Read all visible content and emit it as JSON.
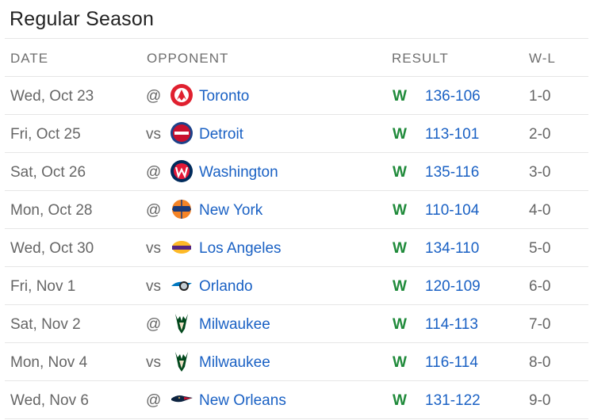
{
  "title": "Regular Season",
  "headers": {
    "date": "DATE",
    "opponent": "OPPONENT",
    "result": "RESULT",
    "wl": "W-L"
  },
  "colors": {
    "win": "#1f8a3a",
    "link": "#1a61c4"
  },
  "games": [
    {
      "date": "Wed, Oct 23",
      "ha": "@",
      "logo": "raptors-logo-icon",
      "team": "Toronto",
      "outcome": "W",
      "score": "136-106",
      "record": "1-0"
    },
    {
      "date": "Fri, Oct 25",
      "ha": "vs",
      "logo": "pistons-logo-icon",
      "team": "Detroit",
      "outcome": "W",
      "score": "113-101",
      "record": "2-0"
    },
    {
      "date": "Sat, Oct 26",
      "ha": "@",
      "logo": "wizards-logo-icon",
      "team": "Washington",
      "outcome": "W",
      "score": "135-116",
      "record": "3-0"
    },
    {
      "date": "Mon, Oct 28",
      "ha": "@",
      "logo": "knicks-logo-icon",
      "team": "New York",
      "outcome": "W",
      "score": "110-104",
      "record": "4-0"
    },
    {
      "date": "Wed, Oct 30",
      "ha": "vs",
      "logo": "lakers-logo-icon",
      "team": "Los Angeles",
      "outcome": "W",
      "score": "134-110",
      "record": "5-0"
    },
    {
      "date": "Fri, Nov 1",
      "ha": "vs",
      "logo": "magic-logo-icon",
      "team": "Orlando",
      "outcome": "W",
      "score": "120-109",
      "record": "6-0"
    },
    {
      "date": "Sat, Nov 2",
      "ha": "@",
      "logo": "bucks-logo-icon",
      "team": "Milwaukee",
      "outcome": "W",
      "score": "114-113",
      "record": "7-0"
    },
    {
      "date": "Mon, Nov 4",
      "ha": "vs",
      "logo": "bucks-logo-icon",
      "team": "Milwaukee",
      "outcome": "W",
      "score": "116-114",
      "record": "8-0"
    },
    {
      "date": "Wed, Nov 6",
      "ha": "@",
      "logo": "pelicans-logo-icon",
      "team": "New Orleans",
      "outcome": "W",
      "score": "131-122",
      "record": "9-0"
    }
  ]
}
